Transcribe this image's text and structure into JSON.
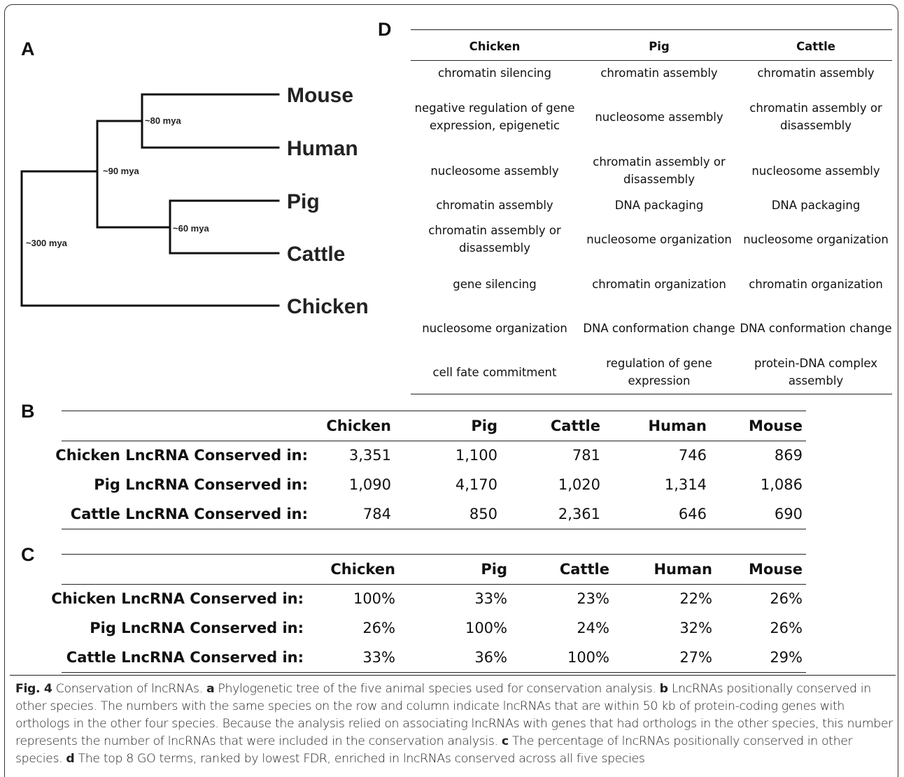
{
  "panel_a": {
    "label": "A",
    "species": [
      "Mouse",
      "Human",
      "Pig",
      "Cattle",
      "Chicken"
    ],
    "divergences": [
      "~80 mya",
      "~90 mya",
      "~60 mya",
      "~300 mya"
    ]
  },
  "panel_d": {
    "label": "D",
    "header": [
      "Chicken",
      "Pig",
      "Cattle"
    ],
    "rows": [
      [
        "chromatin silencing",
        "chromatin assembly",
        "chromatin assembly"
      ],
      [
        "negative regulation of gene expression, epigenetic",
        "nucleosome assembly",
        "chromatin assembly or disassembly"
      ],
      [
        "nucleosome assembly",
        "chromatin assembly or disassembly",
        "nucleosome assembly"
      ],
      [
        "chromatin assembly",
        "DNA packaging",
        "DNA packaging"
      ],
      [
        "chromatin assembly or disassembly",
        "nucleosome organization",
        "nucleosome organization"
      ],
      [
        "gene silencing",
        "chromatin organization",
        "chromatin organization"
      ],
      [
        "nucleosome organization",
        "DNA conformation change",
        "DNA conformation change"
      ],
      [
        "cell fate commitment",
        "regulation of gene expression",
        "protein-DNA complex assembly"
      ]
    ]
  },
  "panel_b": {
    "label": "B",
    "header": [
      "Chicken",
      "Pig",
      "Cattle",
      "Human",
      "Mouse"
    ],
    "rows": [
      {
        "label": "Chicken LncRNA Conserved in:",
        "cells": [
          "3,351",
          "1,100",
          "781",
          "746",
          "869"
        ]
      },
      {
        "label": "Pig LncRNA Conserved in:",
        "cells": [
          "1,090",
          "4,170",
          "1,020",
          "1,314",
          "1,086"
        ]
      },
      {
        "label": "Cattle LncRNA Conserved in:",
        "cells": [
          "784",
          "850",
          "2,361",
          "646",
          "690"
        ]
      }
    ]
  },
  "panel_c": {
    "label": "C",
    "header": [
      "Chicken",
      "Pig",
      "Cattle",
      "Human",
      "Mouse"
    ],
    "rows": [
      {
        "label": "Chicken LncRNA Conserved in:",
        "cells": [
          "100%",
          "33%",
          "23%",
          "22%",
          "26%"
        ]
      },
      {
        "label": "Pig LncRNA Conserved in:",
        "cells": [
          "26%",
          "100%",
          "24%",
          "32%",
          "26%"
        ]
      },
      {
        "label": "Cattle LncRNA Conserved in:",
        "cells": [
          "33%",
          "36%",
          "100%",
          "27%",
          "29%"
        ]
      }
    ]
  },
  "caption": {
    "figure": "Fig. 4",
    "title": "Conservation of lncRNAs.",
    "items": [
      {
        "letter": "a",
        "text": "Phylogenetic tree of the five animal species used for conservation analysis."
      },
      {
        "letter": "b",
        "text": "LncRNAs positionally conserved in other species. The numbers with the same species on the row and column indicate lncRNAs that are within 50 kb of protein-coding genes with orthologs in the other four species. Because the analysis relied on associating lncRNAs with genes that had orthologs in the other species, this number represents the number of lncRNAs that were included in the conservation analysis."
      },
      {
        "letter": "c",
        "text": "The percentage of lncRNAs positionally conserved in other species."
      },
      {
        "letter": "d",
        "text": "The top 8 GO terms, ranked by lowest FDR, enriched in lncRNAs conserved across all five species"
      }
    ]
  }
}
